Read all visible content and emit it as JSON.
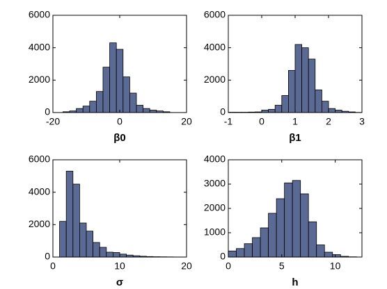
{
  "chart_data": [
    {
      "type": "histogram",
      "xlabel": "β0",
      "color": "#5b6a94",
      "bins": [
        -17,
        -15,
        -13,
        -11,
        -9,
        -7,
        -5,
        -3,
        -1,
        1,
        3,
        5,
        7,
        9,
        11,
        13,
        15
      ],
      "counts": [
        50,
        100,
        250,
        400,
        700,
        1300,
        2800,
        4300,
        3900,
        2200,
        1200,
        450,
        250,
        150,
        100,
        50
      ],
      "xlim": [
        -20,
        20
      ],
      "xticks": [
        -20,
        0,
        20
      ],
      "ylim": [
        0,
        6000
      ],
      "yticks": [
        0,
        2000,
        4000,
        6000
      ]
    },
    {
      "type": "histogram",
      "xlabel": "β1",
      "color": "#5b6a94",
      "bins": [
        -1,
        -0.8,
        -0.6,
        -0.4,
        -0.2,
        0,
        0.2,
        0.4,
        0.6,
        0.8,
        1,
        1.2,
        1.4,
        1.6,
        1.8,
        2,
        2.2,
        2.4,
        2.6,
        2.8,
        3
      ],
      "counts": [
        20,
        20,
        20,
        30,
        40,
        150,
        200,
        450,
        1050,
        2600,
        4200,
        4000,
        3300,
        1400,
        700,
        250,
        150,
        80,
        40,
        10
      ],
      "xlim": [
        -1,
        3
      ],
      "xticks": [
        -1,
        0,
        1,
        2,
        3
      ],
      "ylim": [
        0,
        6000
      ],
      "yticks": [
        0,
        2000,
        4000,
        6000
      ]
    },
    {
      "type": "histogram",
      "xlabel": "σ",
      "color": "#5b6a94",
      "bins": [
        1,
        2,
        3,
        4,
        5,
        6,
        7,
        8,
        9,
        10,
        11,
        12,
        13,
        14,
        15,
        16,
        17,
        18,
        19,
        20
      ],
      "counts": [
        2200,
        5300,
        4500,
        2100,
        1600,
        900,
        600,
        300,
        280,
        180,
        120,
        80,
        50,
        30,
        20,
        15,
        10,
        5,
        5
      ],
      "xlim": [
        0,
        20
      ],
      "xticks": [
        0,
        10,
        20
      ],
      "ylim": [
        0,
        6000
      ],
      "yticks": [
        0,
        2000,
        4000,
        6000
      ]
    },
    {
      "type": "histogram",
      "xlabel": "h",
      "color": "#5b6a94",
      "bins": [
        0,
        0.75,
        1.5,
        2.25,
        3,
        3.75,
        4.5,
        5.25,
        6,
        6.75,
        7.5,
        8.25,
        9,
        9.75,
        10.5,
        11.25,
        12
      ],
      "counts": [
        250,
        350,
        550,
        800,
        1200,
        1800,
        2400,
        3050,
        3150,
        2600,
        1450,
        500,
        200,
        100,
        30,
        10
      ],
      "xlim": [
        0,
        12.5
      ],
      "xticks": [
        0,
        5,
        10
      ],
      "ylim": [
        0,
        4000
      ],
      "yticks": [
        0,
        1000,
        2000,
        3000,
        4000
      ]
    }
  ]
}
